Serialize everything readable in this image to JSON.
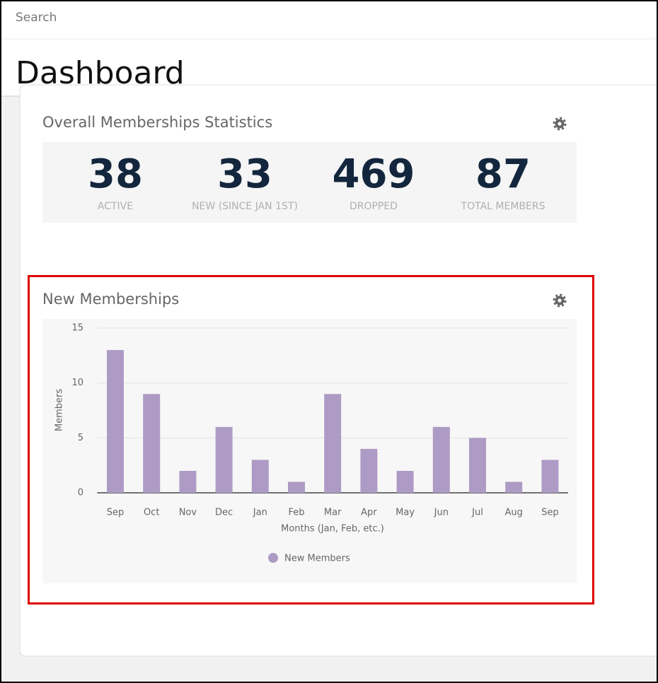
{
  "search_placeholder": "Search",
  "page_title": "Dashboard",
  "stats": {
    "title": "Overall Memberships Statistics",
    "items": [
      {
        "value": "38",
        "label": "ACTIVE"
      },
      {
        "value": "33",
        "label": "NEW (SINCE JAN 1ST)"
      },
      {
        "value": "469",
        "label": "DROPPED"
      },
      {
        "value": "87",
        "label": "TOTAL MEMBERS"
      }
    ]
  },
  "chart_data": {
    "type": "bar",
    "title": "New Memberships",
    "categories": [
      "Sep",
      "Oct",
      "Nov",
      "Dec",
      "Jan",
      "Feb",
      "Mar",
      "Apr",
      "May",
      "Jun",
      "Jul",
      "Aug",
      "Sep"
    ],
    "series": [
      {
        "name": "New Members",
        "color": "#ae9bc5",
        "values": [
          13,
          9,
          2,
          6,
          3,
          1,
          9,
          4,
          2,
          6,
          5,
          1,
          3
        ]
      }
    ],
    "x_label": "Months (Jan, Feb, etc.)",
    "y_label": "Members",
    "ylim": [
      0,
      15
    ],
    "yticks": [
      0,
      5,
      10,
      15
    ],
    "grid": true,
    "legend": "bottom"
  }
}
